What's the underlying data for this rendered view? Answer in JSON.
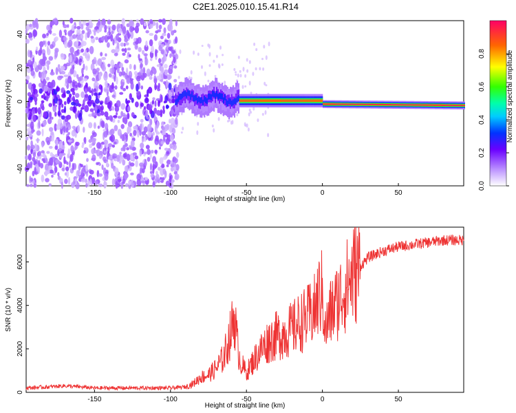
{
  "title": "C2E1.2025.010.15.41.R14",
  "chart_data": [
    {
      "type": "heatmap",
      "xlabel": "Height of straight line (km)",
      "ylabel": "Frequency (Hz)",
      "xlim": [
        -195,
        93
      ],
      "ylim": [
        -50,
        48
      ],
      "xticks": [
        -150,
        -100,
        -50,
        0,
        50
      ],
      "xtick_labels": [
        "-150",
        "-100",
        "-50",
        "0",
        "50"
      ],
      "yticks": [
        -40,
        -20,
        0,
        20,
        40
      ],
      "ytick_labels": [
        "-40",
        "-20",
        "0",
        "20",
        "40"
      ],
      "colorbar": {
        "label": "Normalized spectral amplitude",
        "range": [
          0,
          1
        ],
        "ticks": [
          0,
          0.2,
          0.4,
          0.6,
          0.8
        ],
        "tick_labels": [
          "0.0",
          "0.2",
          "0.4",
          "0.6",
          "0.8"
        ]
      },
      "features": [
        {
          "x_range": [
            -195,
            -95
          ],
          "freq_spread": 48,
          "amplitude": 0.1
        },
        {
          "x_range": [
            -95,
            -55
          ],
          "freq_center": 2,
          "freq_spread": 5,
          "amplitude": 0.35
        },
        {
          "x_range": [
            -55,
            0
          ],
          "freq_center": 0,
          "freq_spread": 2,
          "amplitude": 0.9
        },
        {
          "x_range": [
            0,
            93
          ],
          "freq_center": -2,
          "freq_spread": 1,
          "amplitude": 0.95
        }
      ]
    },
    {
      "type": "line",
      "xlabel": "Height of straight line (km)",
      "ylabel": "SNR (10 * v/v)",
      "xlim": [
        -195,
        93
      ],
      "ylim": [
        0,
        7600
      ],
      "xticks": [
        -150,
        -100,
        -50,
        0,
        50
      ],
      "xtick_labels": [
        "-150",
        "-100",
        "-50",
        "0",
        "50"
      ],
      "yticks": [
        0,
        2000,
        4000,
        6000
      ],
      "ytick_labels": [
        "0",
        "2000",
        "4000",
        "6000"
      ],
      "color": "#ee3333",
      "series": [
        {
          "x": [
            -195,
            -180,
            -170,
            -150,
            -120,
            -100,
            -90,
            -85,
            -80,
            -75,
            -70,
            -65,
            -60,
            -58,
            -56,
            -54,
            -50,
            -45,
            -40,
            -35,
            -30,
            -25,
            -20,
            -15,
            -10,
            -5,
            -2,
            0,
            2,
            5,
            10,
            15,
            20,
            25,
            30,
            40,
            50,
            60,
            70,
            80,
            90,
            93
          ],
          "y": [
            200,
            250,
            300,
            200,
            200,
            200,
            250,
            400,
            700,
            800,
            1100,
            1600,
            2800,
            3600,
            2200,
            1400,
            900,
            1500,
            2000,
            2400,
            2600,
            2700,
            2900,
            3200,
            3400,
            3800,
            4500,
            4600,
            2800,
            3600,
            4200,
            4800,
            5400,
            5800,
            6200,
            6500,
            6700,
            6800,
            6900,
            7000,
            7000,
            7000
          ]
        }
      ]
    }
  ]
}
